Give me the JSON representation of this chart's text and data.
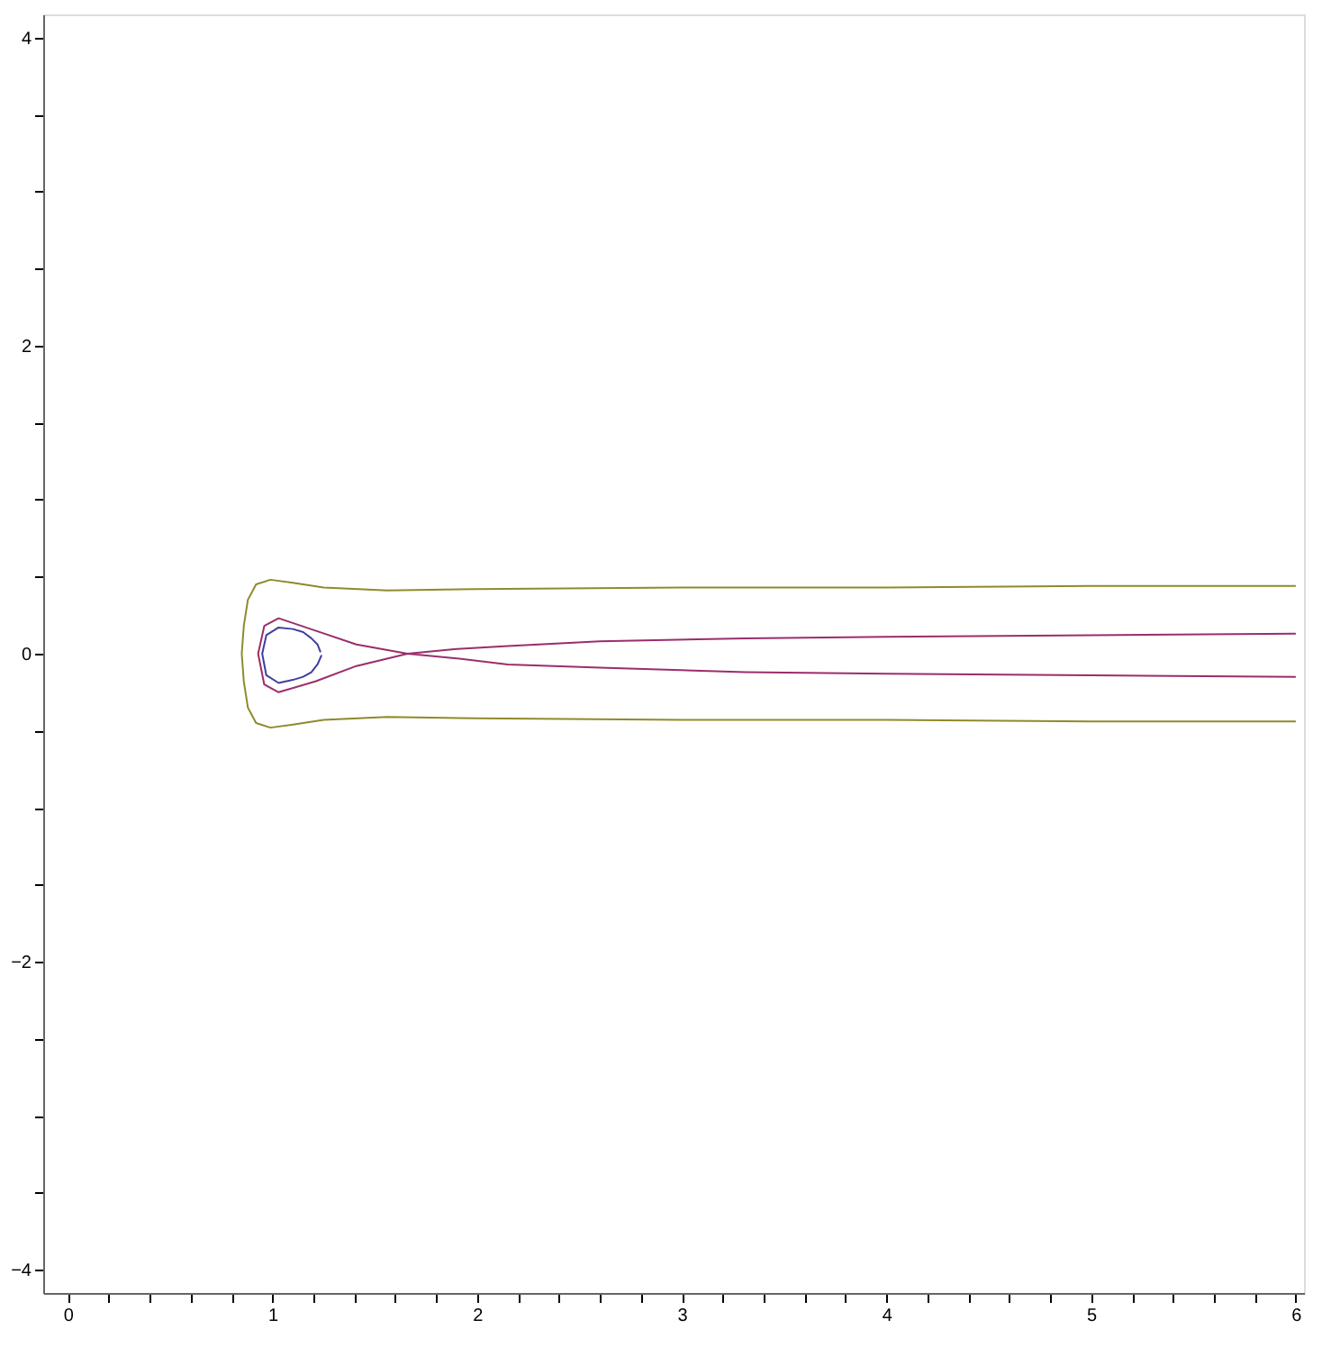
{
  "chart_data": {
    "type": "line",
    "xlim": [
      -0.12,
      6.04
    ],
    "ylim": [
      -4.15,
      4.15
    ],
    "xticks": [
      0,
      {
        "value": 0.2,
        "label": null
      },
      {
        "value": 0.4,
        "label": null
      },
      {
        "value": 0.6,
        "label": null
      },
      {
        "value": 0.8,
        "label": null
      },
      1,
      {
        "value": 1.2,
        "label": null
      },
      {
        "value": 1.4,
        "label": null
      },
      {
        "value": 1.6,
        "label": null
      },
      {
        "value": 1.8,
        "label": null
      },
      2,
      {
        "value": 2.2,
        "label": null
      },
      {
        "value": 2.4,
        "label": null
      },
      {
        "value": 2.6,
        "label": null
      },
      {
        "value": 2.8,
        "label": null
      },
      3,
      {
        "value": 3.2,
        "label": null
      },
      {
        "value": 3.4,
        "label": null
      },
      {
        "value": 3.6,
        "label": null
      },
      {
        "value": 3.8,
        "label": null
      },
      4,
      {
        "value": 4.2,
        "label": null
      },
      {
        "value": 4.4,
        "label": null
      },
      {
        "value": 4.6,
        "label": null
      },
      {
        "value": 4.8,
        "label": null
      },
      5,
      {
        "value": 5.2,
        "label": null
      },
      {
        "value": 5.4,
        "label": null
      },
      {
        "value": 5.6,
        "label": null
      },
      {
        "value": 5.8,
        "label": null
      },
      6
    ],
    "yticks": [
      -4,
      {
        "value": -3.5,
        "label": null
      },
      {
        "value": -3,
        "label": null
      },
      {
        "value": -2.5,
        "label": null
      },
      -2,
      {
        "value": -1.5,
        "label": null
      },
      {
        "value": -1,
        "label": null
      },
      {
        "value": -0.5,
        "label": null
      },
      0,
      {
        "value": 0.5,
        "label": null
      },
      {
        "value": 1,
        "label": null
      },
      {
        "value": 1.5,
        "label": null
      },
      2,
      {
        "value": 2.5,
        "label": null
      },
      {
        "value": 3,
        "label": null
      },
      {
        "value": 3.5,
        "label": null
      },
      4
    ],
    "grid": false,
    "legend": false,
    "marker": "none",
    "line_style": "solid",
    "series": [
      {
        "color": "#8f8a2a",
        "x": [
          6.0,
          5.0,
          4.0,
          3.0,
          2.0,
          1.56,
          1.25,
          1.1,
          0.99,
          0.92,
          0.88,
          0.86,
          0.85,
          0.86,
          0.88,
          0.92,
          0.99,
          1.1,
          1.25,
          1.56,
          2.0,
          3.0,
          4.0,
          5.0,
          6.0
        ],
        "values": [
          0.44,
          0.44,
          0.43,
          0.43,
          0.42,
          0.41,
          0.43,
          0.46,
          0.48,
          0.45,
          0.35,
          0.18,
          0.0,
          -0.18,
          -0.35,
          -0.45,
          -0.48,
          -0.46,
          -0.43,
          -0.41,
          -0.42,
          -0.43,
          -0.43,
          -0.44,
          -0.44
        ]
      },
      {
        "color": "#9b2d6b",
        "x": [
          6.0,
          5.0,
          4.0,
          3.31,
          2.6,
          2.15,
          1.9,
          1.66,
          1.41,
          1.21,
          1.03,
          0.96,
          0.93,
          0.96,
          1.03,
          1.21,
          1.41,
          1.66,
          1.9,
          2.15,
          2.6,
          3.31,
          4.0,
          5.0,
          6.0
        ],
        "values": [
          0.13,
          0.12,
          0.11,
          0.1,
          0.08,
          0.05,
          0.03,
          0.0,
          0.06,
          0.15,
          0.23,
          0.18,
          0.0,
          -0.2,
          -0.25,
          -0.18,
          -0.08,
          0.0,
          -0.03,
          -0.07,
          -0.09,
          -0.12,
          -0.13,
          -0.14,
          -0.15
        ]
      },
      {
        "color": "#3f3f9f",
        "x": [
          1.24,
          1.22,
          1.19,
          1.15,
          1.1,
          1.03,
          0.97,
          0.95,
          0.97,
          1.03,
          1.1,
          1.15,
          1.19,
          1.22,
          1.235
        ],
        "values": [
          -0.01,
          -0.07,
          -0.12,
          -0.15,
          -0.17,
          -0.19,
          -0.14,
          0.0,
          0.12,
          0.17,
          0.16,
          0.14,
          0.1,
          0.06,
          0.01
        ]
      }
    ]
  }
}
